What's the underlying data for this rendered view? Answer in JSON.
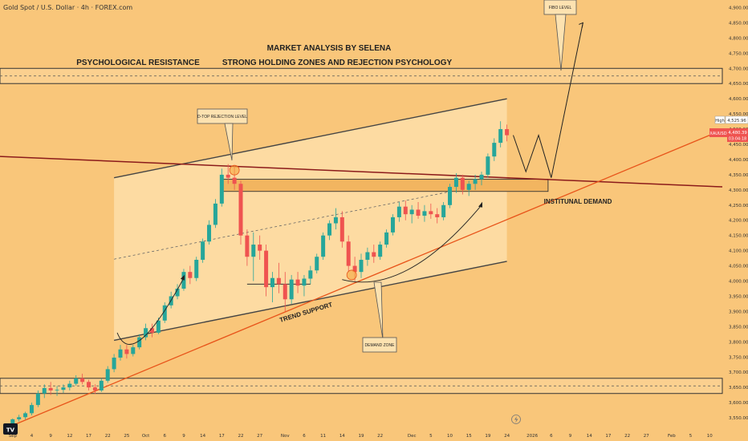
{
  "header": {
    "symbol_title": "Gold Spot / U.S. Dollar · 4h · FOREX.com",
    "tv_logo": "TV"
  },
  "annotations": {
    "title1": "MARKET ANALYSIS BY SELENA",
    "title2": "STRONG HOLDING ZONES AND REJECTION PSYCHOLOGY",
    "psych": "PSYCHOLOGICAL RESISTANCE",
    "dtop": "D-TOP REJECTION LEVEL",
    "fibo": "FIBO LEVEL",
    "demand_zone": "DEMAND ZONE",
    "inst_demand": "INSTITUNAL DEMAND",
    "trend_support": "TREND SUPPORT"
  },
  "badges": {
    "high_label": "High",
    "high_value": "4,525.96",
    "symbol_tag": "XAUUSD",
    "price": "4,480.39",
    "countdown": "03:04:18"
  },
  "colors": {
    "background": "#f9c67a",
    "candle_up": "#26a69a",
    "candle_down": "#ef5350",
    "trendline_orange": "#e8541a",
    "resistance_red": "#8b1a1a",
    "channel_fill": "#fde2b0",
    "price_tag": "#ef5350"
  },
  "chart_data": {
    "type": "candlestick",
    "title": "Gold Spot / U.S. Dollar · 4h · FOREX.com",
    "ylim": [
      3500,
      4925
    ],
    "y_ticks": [
      3550,
      3600,
      3650,
      3700,
      3750,
      3800,
      3850,
      3900,
      3950,
      4000,
      4050,
      4100,
      4150,
      4200,
      4250,
      4300,
      4350,
      4400,
      4450,
      4500,
      4550,
      4600,
      4650,
      4700,
      4750,
      4800,
      4850,
      4900
    ],
    "x_ticks": [
      {
        "label": "Sep",
        "x": 0
      },
      {
        "label": "4",
        "x": 3
      },
      {
        "label": "9",
        "x": 6
      },
      {
        "label": "12",
        "x": 9
      },
      {
        "label": "17",
        "x": 12
      },
      {
        "label": "22",
        "x": 15
      },
      {
        "label": "25",
        "x": 18
      },
      {
        "label": "Oct",
        "x": 21
      },
      {
        "label": "6",
        "x": 24
      },
      {
        "label": "9",
        "x": 27
      },
      {
        "label": "14",
        "x": 30
      },
      {
        "label": "17",
        "x": 33
      },
      {
        "label": "22",
        "x": 36
      },
      {
        "label": "27",
        "x": 39
      },
      {
        "label": "Nov",
        "x": 43
      },
      {
        "label": "6",
        "x": 46
      },
      {
        "label": "11",
        "x": 49
      },
      {
        "label": "14",
        "x": 52
      },
      {
        "label": "19",
        "x": 55
      },
      {
        "label": "22",
        "x": 58
      },
      {
        "label": "Dec",
        "x": 63
      },
      {
        "label": "5",
        "x": 66
      },
      {
        "label": "10",
        "x": 69
      },
      {
        "label": "15",
        "x": 72
      },
      {
        "label": "19",
        "x": 75
      },
      {
        "label": "24",
        "x": 78
      },
      {
        "label": "2026",
        "x": 82
      },
      {
        "label": "6",
        "x": 85
      },
      {
        "label": "9",
        "x": 88
      },
      {
        "label": "14",
        "x": 91
      },
      {
        "label": "17",
        "x": 94
      },
      {
        "label": "22",
        "x": 97
      },
      {
        "label": "27",
        "x": 100
      },
      {
        "label": "Feb",
        "x": 104
      },
      {
        "label": "5",
        "x": 107
      },
      {
        "label": "10",
        "x": 110
      }
    ],
    "x_range": [
      -2,
      112
    ],
    "candles": [
      [
        0,
        3530,
        3548,
        3525,
        3545
      ],
      [
        1,
        3545,
        3560,
        3538,
        3552
      ],
      [
        2,
        3552,
        3570,
        3545,
        3565
      ],
      [
        3,
        3565,
        3600,
        3558,
        3592
      ],
      [
        4,
        3592,
        3640,
        3585,
        3630
      ],
      [
        5,
        3630,
        3660,
        3615,
        3648
      ],
      [
        6,
        3648,
        3668,
        3625,
        3640
      ],
      [
        7,
        3640,
        3655,
        3622,
        3642
      ],
      [
        8,
        3642,
        3660,
        3632,
        3650
      ],
      [
        9,
        3650,
        3672,
        3640,
        3662
      ],
      [
        10,
        3662,
        3690,
        3655,
        3680
      ],
      [
        11,
        3680,
        3695,
        3660,
        3668
      ],
      [
        12,
        3668,
        3675,
        3640,
        3650
      ],
      [
        13,
        3650,
        3660,
        3628,
        3640
      ],
      [
        14,
        3640,
        3680,
        3635,
        3672
      ],
      [
        15,
        3672,
        3720,
        3665,
        3710
      ],
      [
        16,
        3710,
        3760,
        3700,
        3748
      ],
      [
        17,
        3748,
        3790,
        3738,
        3775
      ],
      [
        18,
        3775,
        3790,
        3745,
        3760
      ],
      [
        19,
        3760,
        3790,
        3752,
        3782
      ],
      [
        20,
        3782,
        3825,
        3775,
        3815
      ],
      [
        21,
        3815,
        3860,
        3805,
        3845
      ],
      [
        22,
        3845,
        3860,
        3815,
        3830
      ],
      [
        23,
        3830,
        3880,
        3825,
        3870
      ],
      [
        24,
        3870,
        3930,
        3862,
        3920
      ],
      [
        25,
        3920,
        3965,
        3910,
        3950
      ],
      [
        26,
        3950,
        3990,
        3940,
        3975
      ],
      [
        27,
        3975,
        4040,
        3968,
        4030
      ],
      [
        28,
        4030,
        4050,
        3990,
        4010
      ],
      [
        29,
        4010,
        4080,
        4000,
        4070
      ],
      [
        30,
        4070,
        4140,
        4060,
        4130
      ],
      [
        31,
        4130,
        4200,
        4120,
        4185
      ],
      [
        32,
        4185,
        4270,
        4175,
        4255
      ],
      [
        33,
        4255,
        4370,
        4245,
        4350
      ],
      [
        34,
        4350,
        4385,
        4320,
        4340
      ],
      [
        35,
        4340,
        4381,
        4300,
        4320
      ],
      [
        36,
        4320,
        4330,
        4120,
        4150
      ],
      [
        37,
        4150,
        4170,
        4050,
        4080
      ],
      [
        38,
        4080,
        4160,
        4000,
        4120
      ],
      [
        39,
        4120,
        4150,
        4070,
        4100
      ],
      [
        40,
        4100,
        4120,
        3950,
        3980
      ],
      [
        41,
        3980,
        4030,
        3930,
        4010
      ],
      [
        42,
        4010,
        4060,
        3960,
        3990
      ],
      [
        43,
        3990,
        4030,
        3900,
        3940
      ],
      [
        44,
        3940,
        4020,
        3925,
        4005
      ],
      [
        45,
        4005,
        4030,
        3960,
        3985
      ],
      [
        46,
        3985,
        4020,
        3950,
        4008
      ],
      [
        47,
        4008,
        4050,
        3990,
        4035
      ],
      [
        48,
        4035,
        4090,
        4025,
        4080
      ],
      [
        49,
        4080,
        4160,
        4070,
        4150
      ],
      [
        50,
        4150,
        4200,
        4135,
        4190
      ],
      [
        51,
        4190,
        4240,
        4170,
        4210
      ],
      [
        52,
        4210,
        4230,
        4110,
        4130
      ],
      [
        53,
        4130,
        4150,
        4030,
        4050
      ],
      [
        54,
        4050,
        4080,
        4000,
        4030
      ],
      [
        55,
        4030,
        4090,
        4010,
        4070
      ],
      [
        56,
        4070,
        4110,
        4050,
        4095
      ],
      [
        57,
        4095,
        4120,
        4060,
        4080
      ],
      [
        58,
        4080,
        4130,
        4070,
        4120
      ],
      [
        59,
        4120,
        4170,
        4110,
        4160
      ],
      [
        60,
        4160,
        4220,
        4150,
        4210
      ],
      [
        61,
        4210,
        4260,
        4195,
        4245
      ],
      [
        62,
        4245,
        4265,
        4200,
        4220
      ],
      [
        63,
        4220,
        4250,
        4190,
        4235
      ],
      [
        64,
        4235,
        4260,
        4205,
        4215
      ],
      [
        65,
        4215,
        4250,
        4195,
        4230
      ],
      [
        66,
        4230,
        4255,
        4205,
        4220
      ],
      [
        67,
        4220,
        4240,
        4190,
        4210
      ],
      [
        68,
        4210,
        4260,
        4200,
        4250
      ],
      [
        69,
        4250,
        4320,
        4240,
        4310
      ],
      [
        70,
        4310,
        4355,
        4290,
        4340
      ],
      [
        71,
        4340,
        4350,
        4285,
        4300
      ],
      [
        72,
        4300,
        4330,
        4280,
        4320
      ],
      [
        73,
        4320,
        4350,
        4300,
        4335
      ],
      [
        74,
        4335,
        4360,
        4315,
        4350
      ],
      [
        75,
        4350,
        4420,
        4340,
        4410
      ],
      [
        76,
        4410,
        4470,
        4395,
        4455
      ],
      [
        77,
        4455,
        4526,
        4440,
        4500
      ],
      [
        78,
        4500,
        4515,
        4460,
        4480
      ]
    ],
    "levels": {
      "psychological_resistance": [
        4650,
        4700
      ],
      "lower_zone": [
        3630,
        3680
      ],
      "institutional_demand": [
        4295,
        4335
      ]
    }
  }
}
